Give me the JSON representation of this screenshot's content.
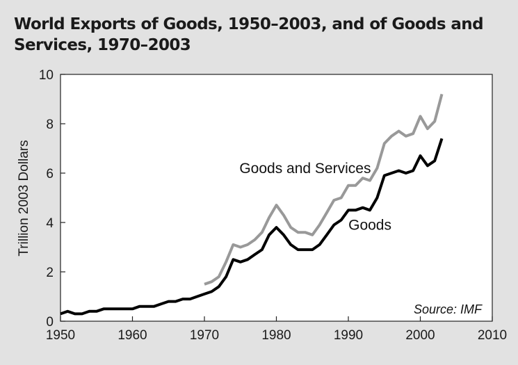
{
  "chart_data": {
    "type": "line",
    "title": "World Exports of Goods, 1950–2003, and of Goods and Services, 1970–2003",
    "xlabel": "",
    "ylabel": "Trillion 2003 Dollars",
    "xlim": [
      1950,
      2010
    ],
    "ylim": [
      0,
      10
    ],
    "xticks": [
      1950,
      1960,
      1970,
      1980,
      1990,
      2000,
      2010
    ],
    "yticks": [
      0,
      2,
      4,
      6,
      8,
      10
    ],
    "source": "Source: IMF",
    "series": [
      {
        "name": "Goods and Services",
        "color": "#999999",
        "x": [
          1970,
          1971,
          1972,
          1973,
          1974,
          1975,
          1976,
          1977,
          1978,
          1979,
          1980,
          1981,
          1982,
          1983,
          1984,
          1985,
          1986,
          1987,
          1988,
          1989,
          1990,
          1991,
          1992,
          1993,
          1994,
          1995,
          1996,
          1997,
          1998,
          1999,
          2000,
          2001,
          2002,
          2003
        ],
        "values": [
          1.5,
          1.6,
          1.8,
          2.4,
          3.1,
          3.0,
          3.1,
          3.3,
          3.6,
          4.2,
          4.7,
          4.3,
          3.8,
          3.6,
          3.6,
          3.5,
          3.9,
          4.4,
          4.9,
          5.0,
          5.5,
          5.5,
          5.8,
          5.7,
          6.2,
          7.2,
          7.5,
          7.7,
          7.5,
          7.6,
          8.3,
          7.8,
          8.1,
          9.2
        ]
      },
      {
        "name": "Goods",
        "color": "#000000",
        "x": [
          1950,
          1951,
          1952,
          1953,
          1954,
          1955,
          1956,
          1957,
          1958,
          1959,
          1960,
          1961,
          1962,
          1963,
          1964,
          1965,
          1966,
          1967,
          1968,
          1969,
          1970,
          1971,
          1972,
          1973,
          1974,
          1975,
          1976,
          1977,
          1978,
          1979,
          1980,
          1981,
          1982,
          1983,
          1984,
          1985,
          1986,
          1987,
          1988,
          1989,
          1990,
          1991,
          1992,
          1993,
          1994,
          1995,
          1996,
          1997,
          1998,
          1999,
          2000,
          2001,
          2002,
          2003
        ],
        "values": [
          0.3,
          0.4,
          0.3,
          0.3,
          0.4,
          0.4,
          0.5,
          0.5,
          0.5,
          0.5,
          0.5,
          0.6,
          0.6,
          0.6,
          0.7,
          0.8,
          0.8,
          0.9,
          0.9,
          1.0,
          1.1,
          1.2,
          1.4,
          1.8,
          2.5,
          2.4,
          2.5,
          2.7,
          2.9,
          3.5,
          3.8,
          3.5,
          3.1,
          2.9,
          2.9,
          2.9,
          3.1,
          3.5,
          3.9,
          4.1,
          4.5,
          4.5,
          4.6,
          4.5,
          5.0,
          5.9,
          6.0,
          6.1,
          6.0,
          6.1,
          6.7,
          6.3,
          6.5,
          7.4
        ]
      }
    ],
    "annotations": [
      {
        "text": "Goods and Services",
        "series": "Goods and Services",
        "x": 1984,
        "y": 6.0
      },
      {
        "text": "Goods",
        "series": "Goods",
        "x": 1993,
        "y": 3.7
      }
    ]
  }
}
